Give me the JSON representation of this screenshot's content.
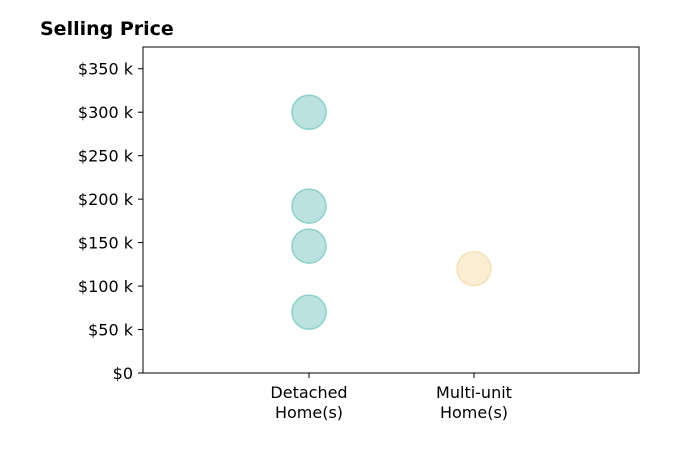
{
  "chart_data": {
    "type": "scatter",
    "title": "Selling Price",
    "xlabel": "",
    "ylabel": "",
    "categories": [
      "Detached\nHome(s)",
      "Multi-unit\nHome(s)"
    ],
    "ylim": [
      0,
      375000
    ],
    "yticks": [
      0,
      50000,
      100000,
      150000,
      200000,
      250000,
      300000,
      350000
    ],
    "ytick_labels": [
      "$0",
      "$50 k",
      "$100 k",
      "$150 k",
      "$200 k",
      "$250 k",
      "$300 k",
      "$350 k"
    ],
    "grid": false,
    "series": [
      {
        "category": "Detached\nHome(s)",
        "color": "#8ecfc9",
        "values": [
          300000,
          192000,
          146000,
          70000
        ]
      },
      {
        "category": "Multi-unit\nHome(s)",
        "color": "#f5e2b8",
        "values": [
          120000
        ]
      }
    ]
  }
}
